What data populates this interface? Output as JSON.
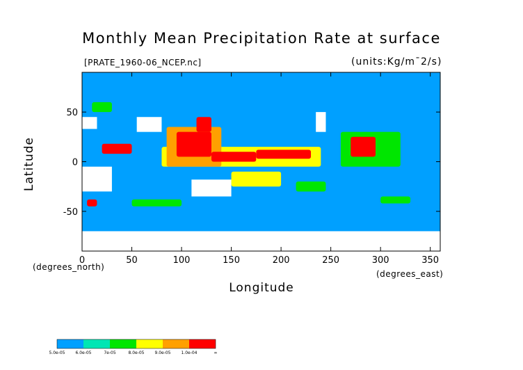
{
  "chart_data": {
    "type": "heatmap",
    "title": "Monthly Mean Precipitation Rate at surface",
    "source_file": "[PRATE_1960-06_NCEP.nc]",
    "units": "(units:Kg/m¯2/s)",
    "xlabel": "Longitude",
    "ylabel": "Latitude",
    "x_unit": "(degrees_east)",
    "y_unit": "(degrees_north)",
    "xlim": [
      0,
      360
    ],
    "ylim": [
      -90,
      90
    ],
    "x_ticks": [
      0,
      50,
      100,
      150,
      200,
      250,
      300,
      350
    ],
    "x_tick_labels": [
      "0",
      "50",
      "100",
      "150",
      "200",
      "250",
      "300",
      "350"
    ],
    "y_ticks": [
      50,
      0,
      -50
    ],
    "y_tick_labels": [
      "50",
      "0",
      "-50"
    ],
    "colorbar": {
      "labels": [
        "5.0e-05",
        "6.0e-05",
        "7e-05",
        "8.0e-05",
        "9.0e-05",
        "1.0e-04",
        "∞"
      ],
      "colors": [
        "#00a0ff",
        "#00e6b4",
        "#00e600",
        "#ffff00",
        "#ffa000",
        "#ff0000"
      ]
    },
    "regions": [
      {
        "level": 5,
        "x": [
          95,
          130
        ],
        "y": [
          5,
          30
        ]
      },
      {
        "level": 5,
        "x": [
          130,
          175
        ],
        "y": [
          0,
          10
        ]
      },
      {
        "level": 5,
        "x": [
          175,
          230
        ],
        "y": [
          3,
          12
        ]
      },
      {
        "level": 5,
        "x": [
          270,
          295
        ],
        "y": [
          5,
          25
        ]
      },
      {
        "level": 5,
        "x": [
          20,
          50
        ],
        "y": [
          8,
          18
        ]
      },
      {
        "level": 5,
        "x": [
          115,
          130
        ],
        "y": [
          30,
          45
        ]
      },
      {
        "level": 4,
        "x": [
          85,
          140
        ],
        "y": [
          -5,
          35
        ]
      },
      {
        "level": 3,
        "x": [
          80,
          240
        ],
        "y": [
          -5,
          15
        ]
      },
      {
        "level": 2,
        "x": [
          260,
          320
        ],
        "y": [
          -5,
          30
        ]
      },
      {
        "level": 3,
        "x": [
          150,
          200
        ],
        "y": [
          -25,
          -10
        ]
      },
      {
        "level": 2,
        "x": [
          215,
          245
        ],
        "y": [
          -30,
          -20
        ]
      },
      {
        "level": 2,
        "x": [
          50,
          100
        ],
        "y": [
          -45,
          -38
        ]
      },
      {
        "level": 2,
        "x": [
          300,
          330
        ],
        "y": [
          -42,
          -35
        ]
      },
      {
        "level": 2,
        "x": [
          10,
          30
        ],
        "y": [
          50,
          60
        ]
      },
      {
        "level": 5,
        "x": [
          5,
          15
        ],
        "y": [
          -45,
          -38
        ]
      }
    ],
    "missing_regions": [
      {
        "x": [
          0,
          360
        ],
        "y": [
          -90,
          -70
        ]
      },
      {
        "x": [
          0,
          30
        ],
        "y": [
          -30,
          -5
        ]
      },
      {
        "x": [
          110,
          150
        ],
        "y": [
          -35,
          -18
        ]
      },
      {
        "x": [
          55,
          80
        ],
        "y": [
          30,
          45
        ]
      },
      {
        "x": [
          0,
          15
        ],
        "y": [
          33,
          45
        ]
      },
      {
        "x": [
          235,
          245
        ],
        "y": [
          30,
          50
        ]
      }
    ]
  }
}
